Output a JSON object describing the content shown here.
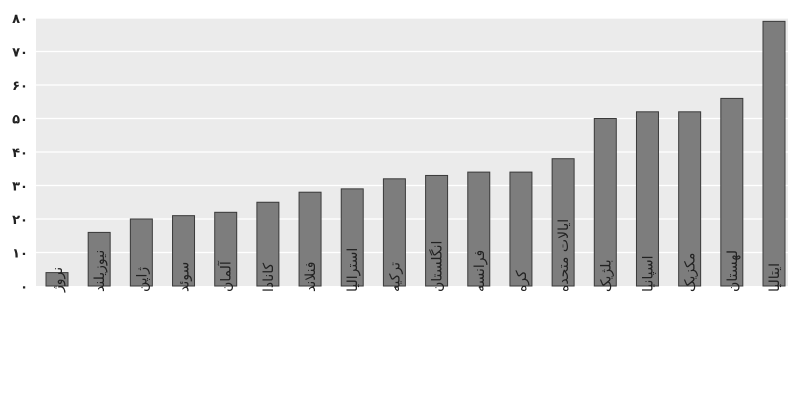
{
  "chart_data": {
    "type": "bar",
    "categories": [
      "نروژ",
      "نیوزیلند",
      "ژاپن",
      "سوئد",
      "آلمان",
      "کانادا",
      "فنلاند",
      "استرالیا",
      "ترکیه",
      "انگلستان",
      "فرانسه",
      "کره",
      "ایالات متحده",
      "بلژیک",
      "اسپانیا",
      "مکزیک",
      "لهستان",
      "ایتالیا"
    ],
    "values": [
      4,
      16,
      20,
      21,
      22,
      25,
      28,
      29,
      32,
      33,
      34,
      34,
      38,
      50,
      52,
      52,
      56,
      79
    ],
    "ylim": [
      0,
      80
    ],
    "yticks": [
      0,
      10,
      20,
      30,
      40,
      50,
      60,
      70,
      80
    ],
    "ytick_labels": [
      "۰",
      "۱۰",
      "۲۰",
      "۳۰",
      "۴۰",
      "۵۰",
      "۶۰",
      "۷۰",
      "۸۰"
    ],
    "grid": true,
    "legend": "none",
    "colors": {
      "bar_fill": "#7d7d7d",
      "bar_stroke": "#3a3a3a",
      "plot_background": "#ebebeb",
      "gridline": "#ffffff"
    }
  }
}
